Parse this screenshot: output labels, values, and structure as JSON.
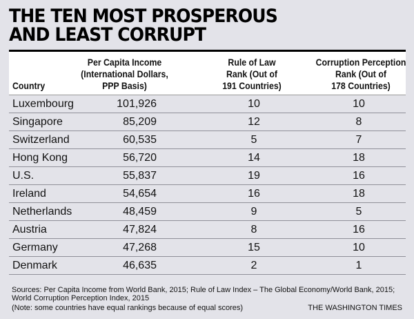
{
  "title_line1": "THE TEN MOST PROSPEROUS",
  "title_line2": "AND LEAST CORRUPT",
  "headers": {
    "country": "Country",
    "income": [
      "Per Capita Income",
      "(International Dollars,",
      "PPP Basis)"
    ],
    "rule_of_law": [
      "Rule of Law",
      "Rank (Out of",
      "191 Countries)"
    ],
    "corruption": [
      "Corruption Perception",
      "Rank (Out of",
      "178 Countries)"
    ]
  },
  "rows": [
    [
      "Luxembourg",
      "101,926",
      "10",
      "10"
    ],
    [
      "Singapore",
      "85,209",
      "12",
      "8"
    ],
    [
      "Switzerland",
      "60,535",
      "5",
      "7"
    ],
    [
      "Hong Kong",
      "56,720",
      "14",
      "18"
    ],
    [
      "U.S.",
      "55,837",
      "19",
      "16"
    ],
    [
      "Ireland",
      "54,654",
      "16",
      "18"
    ],
    [
      "Netherlands",
      "48,459",
      "9",
      "5"
    ],
    [
      "Austria",
      "47,824",
      "8",
      "16"
    ],
    [
      "Germany",
      "47,268",
      "15",
      "10"
    ],
    [
      "Denmark",
      "46,635",
      "2",
      "1"
    ]
  ],
  "sources": "Sources: Per Capita Income from World Bank, 2015; Rule of Law Index – The Global Economy/World Bank, 2015; World Corruption Perception Index, 2015",
  "note": "(Note: some countries have equal rankings because of equal scores)",
  "brand": "THE WASHINGTON TIMES"
}
